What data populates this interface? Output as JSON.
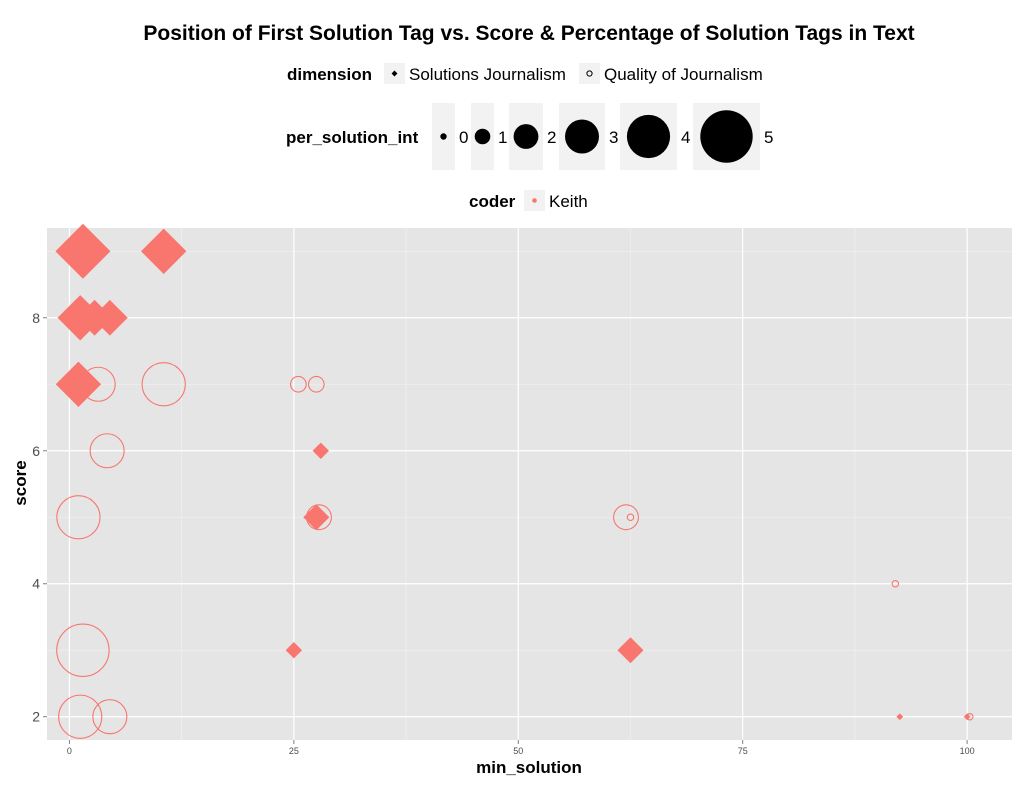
{
  "chart_data": {
    "type": "scatter",
    "title": "Position of First Solution Tag vs. Score & Percentage of Solution Tags in Text",
    "xlabel": "min_solution",
    "ylabel": "score",
    "xlim": [
      -2.5,
      105
    ],
    "ylim": [
      1.65,
      9.35
    ],
    "xticks": [
      0,
      25,
      50,
      75,
      100
    ],
    "yticks": [
      2,
      4,
      6,
      8
    ],
    "grid": true,
    "point_color": "#F8766D",
    "panel_background": "#E5E5E5",
    "legend": {
      "placement": "top",
      "dimension": {
        "title": "dimension",
        "entries": [
          {
            "label": "Solutions Journalism",
            "shape": "filled-diamond"
          },
          {
            "label": "Quality of Journalism",
            "shape": "open-circle"
          }
        ]
      },
      "size": {
        "title": "per_solution_int",
        "entries": [
          {
            "label": "0",
            "value": 0
          },
          {
            "label": "1",
            "value": 1
          },
          {
            "label": "2",
            "value": 2
          },
          {
            "label": "3",
            "value": 3
          },
          {
            "label": "4",
            "value": 4
          },
          {
            "label": "5",
            "value": 5
          }
        ]
      },
      "coder": {
        "title": "coder",
        "entries": [
          {
            "label": "Keith",
            "color": "#F8766D"
          }
        ]
      }
    },
    "series": [
      {
        "name": "Solutions Journalism",
        "shape": "filled-diamond",
        "points": [
          {
            "x": 1.5,
            "y": 9,
            "size": 5
          },
          {
            "x": 10.5,
            "y": 9,
            "size": 4
          },
          {
            "x": 1.2,
            "y": 8,
            "size": 4
          },
          {
            "x": 2.8,
            "y": 8,
            "size": 3
          },
          {
            "x": 4.5,
            "y": 8,
            "size": 3
          },
          {
            "x": 1.0,
            "y": 7,
            "size": 4
          },
          {
            "x": 28.0,
            "y": 6,
            "size": 1
          },
          {
            "x": 27.5,
            "y": 5,
            "size": 2
          },
          {
            "x": 25.0,
            "y": 3,
            "size": 1
          },
          {
            "x": 62.5,
            "y": 3,
            "size": 2
          },
          {
            "x": 92.5,
            "y": 2,
            "size": 0
          },
          {
            "x": 100.0,
            "y": 2,
            "size": 0
          }
        ]
      },
      {
        "name": "Quality of Journalism",
        "shape": "open-circle",
        "points": [
          {
            "x": 3.2,
            "y": 7,
            "size": 3
          },
          {
            "x": 10.5,
            "y": 7,
            "size": 4
          },
          {
            "x": 25.5,
            "y": 7,
            "size": 1
          },
          {
            "x": 27.5,
            "y": 7,
            "size": 1
          },
          {
            "x": 4.2,
            "y": 6,
            "size": 3
          },
          {
            "x": 1.0,
            "y": 5,
            "size": 4
          },
          {
            "x": 27.8,
            "y": 5,
            "size": 2
          },
          {
            "x": 62.0,
            "y": 5,
            "size": 2
          },
          {
            "x": 62.5,
            "y": 5,
            "size": 0
          },
          {
            "x": 92.0,
            "y": 4,
            "size": 0
          },
          {
            "x": 1.5,
            "y": 3,
            "size": 5
          },
          {
            "x": 1.2,
            "y": 2,
            "size": 4
          },
          {
            "x": 4.5,
            "y": 2,
            "size": 3
          },
          {
            "x": 100.3,
            "y": 2,
            "size": 0
          }
        ]
      }
    ]
  }
}
